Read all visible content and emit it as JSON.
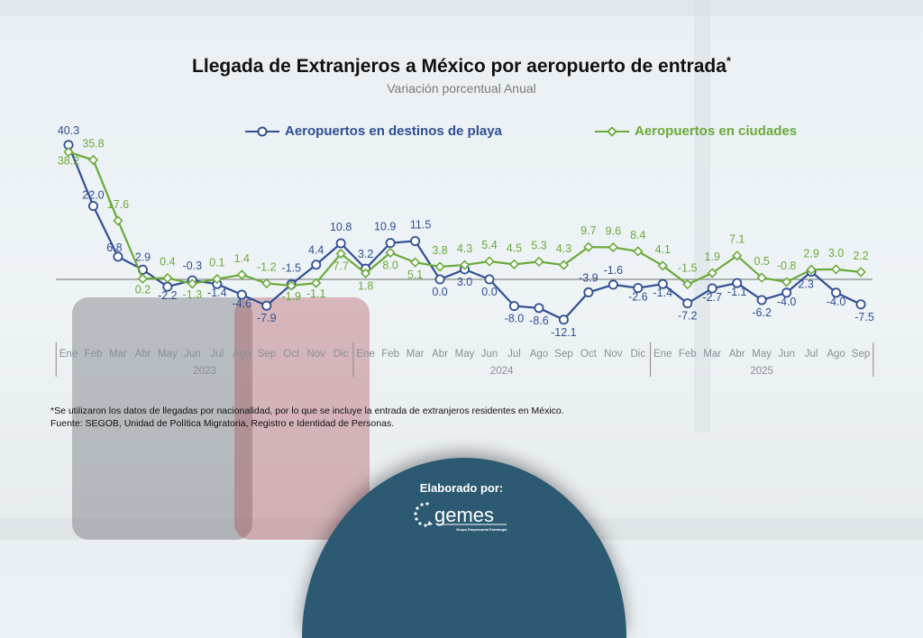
{
  "title": "Llegada de Extranjeros a México por aeropuerto de entrada",
  "title_marker": "*",
  "subtitle": "Variación porcentual Anual",
  "footnote": "*Se utilizaron los datos de llegadas por nacionalidad, por lo que se incluye la entrada de extranjeros residentes en México.",
  "source": "Fuente: SEGOB, Unidad de Política Migratoria, Registro e Identidad de Personas.",
  "credit": {
    "label": "Elaborado por:",
    "logo_text": "gemes",
    "logo_tagline": "Grupo Empresarial Estrategia"
  },
  "colors": {
    "blue": "#2f4f94",
    "green": "#6aaa3a",
    "badge": "#2c5a73"
  },
  "chart_data": {
    "type": "line",
    "title": "Llegada de Extranjeros a México por aeropuerto de entrada*",
    "subtitle": "Variación porcentual Anual",
    "xlabel": "",
    "ylabel": "",
    "grid": false,
    "legend_position": "top",
    "ylim": [
      -15,
      42
    ],
    "categories": [
      "Ene",
      "Feb",
      "Mar",
      "Abr",
      "May",
      "Jun",
      "Jul",
      "Ago",
      "Sep",
      "Oct",
      "Nov",
      "Dic",
      "Ene",
      "Feb",
      "Mar",
      "Abr",
      "May",
      "Jun",
      "Jul",
      "Ago",
      "Sep",
      "Oct",
      "Nov",
      "Dic",
      "Ene",
      "Feb",
      "Mar",
      "Abr",
      "May",
      "Jun",
      "Jul",
      "Ago",
      "Sep"
    ],
    "years": [
      {
        "label": "2023",
        "start": 0,
        "end": 11
      },
      {
        "label": "2024",
        "start": 12,
        "end": 23
      },
      {
        "label": "2025",
        "start": 24,
        "end": 32
      }
    ],
    "series": [
      {
        "name": "Aeropuertos en destinos de playa",
        "color": "#2f4f94",
        "marker": "circle",
        "values": [
          40.3,
          22.0,
          6.8,
          2.9,
          -2.2,
          -0.3,
          -1.4,
          -4.6,
          -7.9,
          -1.5,
          4.4,
          10.8,
          3.2,
          10.9,
          11.5,
          0.0,
          3.0,
          0.0,
          -8.0,
          -8.6,
          -12.1,
          -3.9,
          -1.6,
          -2.6,
          -1.4,
          -7.2,
          -2.7,
          -1.1,
          -6.2,
          -4.0,
          2.3,
          -4.0,
          -7.5
        ],
        "labels": [
          "40.3",
          "22.0",
          "6.8",
          "2.9",
          "-2.2",
          "-0.3",
          "-1.4",
          "-4.6",
          "-7.9",
          "-1.5",
          "4.4",
          "10.8",
          "3.2",
          "10.9",
          "11.5",
          "0.0",
          "3.0",
          "0.0",
          "-8.0",
          "-8.6",
          "-12.1",
          "-3.9",
          "-1.6",
          "-2.6",
          "-1.4",
          "-7.2",
          "-2.7",
          "-1.1",
          "-6.2",
          "-4.0",
          "2.3",
          "-4.0",
          "-7.5"
        ]
      },
      {
        "name": "Aeropuertos en ciudades",
        "color": "#6aaa3a",
        "marker": "diamond",
        "values": [
          38.2,
          35.8,
          17.6,
          0.2,
          0.4,
          -1.3,
          0.1,
          1.4,
          -1.2,
          -1.9,
          -1.1,
          7.7,
          1.8,
          8.0,
          5.1,
          3.8,
          4.3,
          5.4,
          4.5,
          5.3,
          4.3,
          9.7,
          9.6,
          8.4,
          4.1,
          -1.5,
          1.9,
          7.1,
          0.5,
          -0.8,
          2.9,
          3.0,
          2.2
        ],
        "labels": [
          "38.2",
          "35.8",
          "17.6",
          "0.2",
          "0.4",
          "-1.3",
          "0.1",
          "1.4",
          "-1.2",
          "-1.9",
          "-1.1",
          "7.7",
          "1.8",
          "8.0",
          "5.1",
          "3.8",
          "4.3",
          "5.4",
          "4.5",
          "5.3",
          "4.3",
          "9.7",
          "9.6",
          "8.4",
          "4.1",
          "-1.5",
          "1.9",
          "7.1",
          "0.5",
          "-0.8",
          "2.9",
          "3.0",
          "2.2"
        ]
      }
    ]
  }
}
